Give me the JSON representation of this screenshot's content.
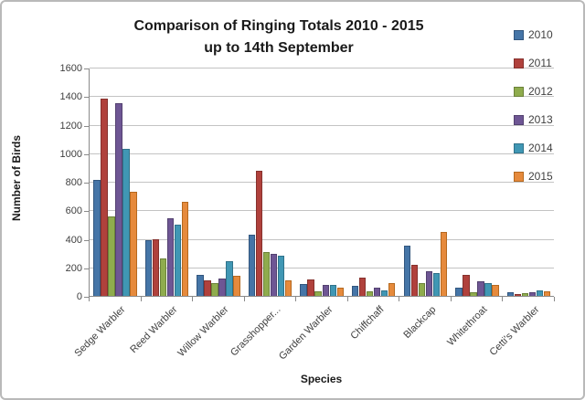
{
  "chart_data": {
    "type": "bar",
    "title": "Comparison of Ringing Totals 2010 - 2015",
    "subtitle": "up to 14th September",
    "xlabel": "Species",
    "ylabel": "Number of Birds",
    "ylim": [
      0,
      1600
    ],
    "ytick_step": 200,
    "grid": true,
    "legend_position": "right",
    "categories": [
      "Sedge Warbler",
      "Reed Warbler",
      "Willow Warbler",
      "Grasshopper...",
      "Garden Warbler",
      "Chiffchaff",
      "Blackcap",
      "Whitethroat",
      "Cetti's Warbler"
    ],
    "series": [
      {
        "name": "2010",
        "color": "#4575A7",
        "border_color": "#32567E",
        "values": [
          815,
          390,
          150,
          430,
          85,
          70,
          350,
          60,
          25
        ]
      },
      {
        "name": "2011",
        "color": "#B0413C",
        "border_color": "#86312D",
        "values": [
          1380,
          395,
          110,
          875,
          115,
          125,
          220,
          150,
          15
        ]
      },
      {
        "name": "2012",
        "color": "#8FAC4D",
        "border_color": "#6B823A",
        "values": [
          555,
          260,
          90,
          305,
          35,
          30,
          90,
          25,
          20
        ]
      },
      {
        "name": "2013",
        "color": "#6E5694",
        "border_color": "#534170",
        "values": [
          1350,
          545,
          120,
          295,
          80,
          55,
          175,
          100,
          25
        ]
      },
      {
        "name": "2014",
        "color": "#4097B4",
        "border_color": "#30728A",
        "values": [
          1030,
          500,
          245,
          280,
          80,
          40,
          160,
          90,
          40
        ]
      },
      {
        "name": "2015",
        "color": "#E68A3C",
        "border_color": "#B5691F",
        "values": [
          730,
          660,
          140,
          110,
          60,
          90,
          445,
          80,
          35
        ]
      }
    ]
  }
}
